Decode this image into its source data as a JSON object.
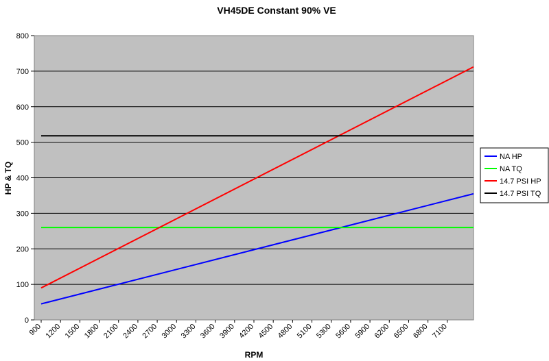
{
  "chart_data": {
    "type": "line",
    "title": "VH45DE Constant 90% VE",
    "xlabel": "RPM",
    "ylabel": "HP & TQ",
    "ylim": [
      0,
      800
    ],
    "yticks": [
      "0",
      "100",
      "200",
      "300",
      "400",
      "500",
      "600",
      "700",
      "800"
    ],
    "xlim": [
      900,
      7300
    ],
    "xticks": [
      "900",
      "1200",
      "1500",
      "1800",
      "2100",
      "2400",
      "2700",
      "3000",
      "3300",
      "3600",
      "3900",
      "4200",
      "4500",
      "4800",
      "5100",
      "5300",
      "5600",
      "5900",
      "6200",
      "6500",
      "6800",
      "7100"
    ],
    "grid": "horizontal",
    "legend_position": "right",
    "series": [
      {
        "name": "NA HP",
        "color": "#0000ff",
        "x": [
          1000,
          7300
        ],
        "values": [
          45,
          355
        ]
      },
      {
        "name": "NA TQ",
        "color": "#00ff00",
        "x": [
          1000,
          7300
        ],
        "values": [
          260,
          260
        ]
      },
      {
        "name": "14.7 PSI HP",
        "color": "#ff0000",
        "x": [
          1000,
          7300
        ],
        "values": [
          90,
          712
        ]
      },
      {
        "name": "14.7 PSI TQ",
        "color": "#000000",
        "x": [
          1000,
          7300
        ],
        "values": [
          518,
          518
        ]
      }
    ]
  }
}
